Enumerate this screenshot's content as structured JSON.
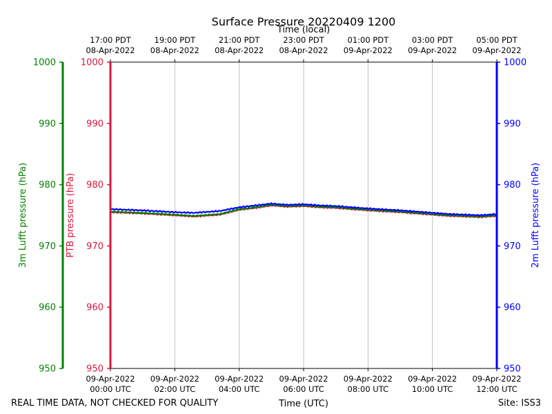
{
  "chart_data": {
    "type": "line",
    "title": "Surface Pressure 20220409 1200",
    "top_axis_label": "Time (local)",
    "xlabel": "Time (UTC)",
    "footer_left": "REAL TIME DATA, NOT CHECKED FOR QUALITY",
    "footer_right": "Site: ISS3",
    "x_range_hours": [
      0,
      12
    ],
    "x_ticks_utc": [
      {
        "hour": 0,
        "line1": "09-Apr-2022",
        "line2": "00:00 UTC"
      },
      {
        "hour": 2,
        "line1": "09-Apr-2022",
        "line2": "02:00 UTC"
      },
      {
        "hour": 4,
        "line1": "09-Apr-2022",
        "line2": "04:00 UTC"
      },
      {
        "hour": 6,
        "line1": "09-Apr-2022",
        "line2": "06:00 UTC"
      },
      {
        "hour": 8,
        "line1": "09-Apr-2022",
        "line2": "08:00 UTC"
      },
      {
        "hour": 10,
        "line1": "09-Apr-2022",
        "line2": "10:00 UTC"
      },
      {
        "hour": 12,
        "line1": "09-Apr-2022",
        "line2": "12:00 UTC"
      }
    ],
    "x_ticks_local": [
      {
        "hour": 0,
        "line1": "17:00 PDT",
        "line2": "08-Apr-2022"
      },
      {
        "hour": 2,
        "line1": "19:00 PDT",
        "line2": "08-Apr-2022"
      },
      {
        "hour": 4,
        "line1": "21:00 PDT",
        "line2": "08-Apr-2022"
      },
      {
        "hour": 6,
        "line1": "23:00 PDT",
        "line2": "08-Apr-2022"
      },
      {
        "hour": 8,
        "line1": "01:00 PDT",
        "line2": "09-Apr-2022"
      },
      {
        "hour": 10,
        "line1": "03:00 PDT",
        "line2": "09-Apr-2022"
      },
      {
        "hour": 12,
        "line1": "05:00 PDT",
        "line2": "09-Apr-2022"
      }
    ],
    "ylim": [
      950,
      1000
    ],
    "y_ticks": [
      950,
      960,
      970,
      980,
      990,
      1000
    ],
    "y_axes": [
      {
        "label": "3m Lufft pressure (hPa)",
        "color": "#008000"
      },
      {
        "label": "PTB pressure (hPa)",
        "color": "#dc143c"
      },
      {
        "label": "2m Lufft pressure (hPa)",
        "color": "#0000ff"
      }
    ],
    "grid": "vertical",
    "series": [
      {
        "color": "#dc143c",
        "x": [
          0,
          1,
          2,
          2.6,
          3.4,
          4,
          4.5,
          5,
          5.5,
          6,
          6.5,
          7,
          8,
          9,
          10,
          10.5,
          11,
          11.5,
          12
        ],
        "y": [
          975.5,
          975.3,
          975.0,
          974.8,
          975.1,
          975.9,
          976.2,
          976.6,
          976.4,
          976.5,
          976.3,
          976.2,
          975.8,
          975.5,
          975.1,
          974.9,
          974.8,
          974.7,
          974.9
        ]
      },
      {
        "color": "#008000",
        "x": [
          0,
          1,
          2,
          2.6,
          3.4,
          4,
          4.5,
          5,
          5.5,
          6,
          6.5,
          7,
          8,
          9,
          10,
          10.5,
          11,
          11.5,
          12
        ],
        "y": [
          975.6,
          975.4,
          975.1,
          974.9,
          975.2,
          976.0,
          976.3,
          976.7,
          976.5,
          976.6,
          976.4,
          976.3,
          975.9,
          975.6,
          975.2,
          975.0,
          974.9,
          974.8,
          975.0
        ]
      },
      {
        "color": "#0000ff",
        "x": [
          0,
          1,
          2,
          2.6,
          3.4,
          4,
          4.5,
          5,
          5.5,
          6,
          6.5,
          7,
          8,
          9,
          10,
          10.5,
          11,
          11.5,
          12
        ],
        "y": [
          976.0,
          975.8,
          975.5,
          975.4,
          975.7,
          976.3,
          976.6,
          976.9,
          976.7,
          976.8,
          976.6,
          976.5,
          976.1,
          975.8,
          975.4,
          975.2,
          975.1,
          975.0,
          975.2
        ]
      }
    ]
  }
}
